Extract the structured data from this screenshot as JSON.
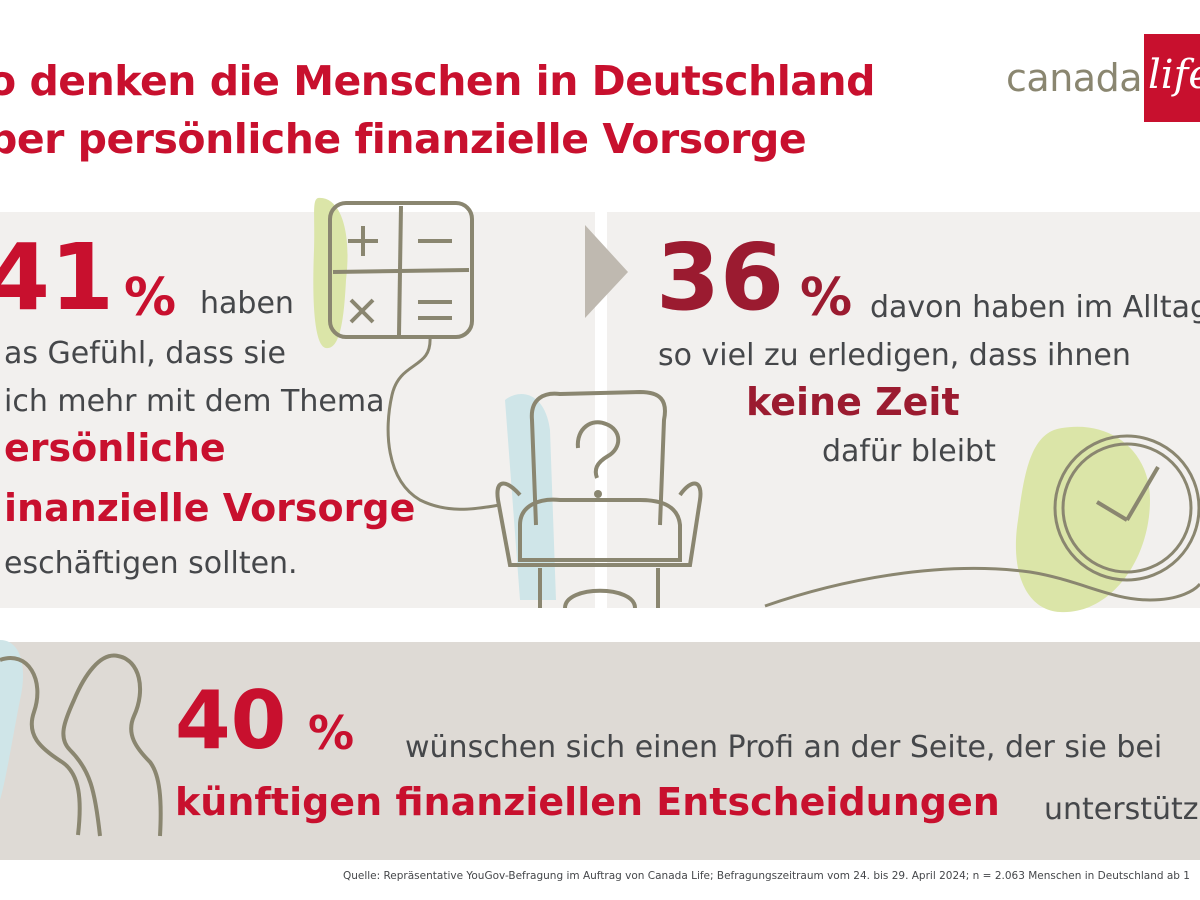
{
  "title": {
    "line1": "o denken die Menschen in Deutschland",
    "line2": "ber persönliche finanzielle Vorsorge"
  },
  "logo": {
    "text": "canada",
    "script": "life"
  },
  "stat1": {
    "number": "41",
    "percent": "%",
    "word": "haben",
    "line2": "as Gefühl, dass sie",
    "line3": "ich mehr mit dem Thema",
    "emph1": "ersönliche",
    "emph2": "inanzielle Vorsorge",
    "line6": "eschäftigen sollten."
  },
  "stat2": {
    "number": "36",
    "percent": "%",
    "line1": "davon haben im Alltag",
    "line2": "so viel zu erledigen, dass ihnen",
    "emph": "keine Zeit",
    "line4": "dafür bleibt"
  },
  "stat3": {
    "number": "40",
    "percent": "%",
    "line1": "wünschen sich einen Profi an der Seite, der sie bei",
    "emph": "künftigen finanziellen Entscheidungen",
    "tail": "unterstütz"
  },
  "source": "Quelle: Repräsentative YouGov-Befragung im Auftrag von Canada Life; Befragungszeitraum vom 24. bis 29. April 2024; n = 2.063 Menschen in Deutschland ab 1",
  "icons": [
    "calculator-icon",
    "armchair-question-icon",
    "clock-icon",
    "people-icon",
    "arrow-icon"
  ],
  "colors": {
    "brand_red": "#c8102e",
    "dark_red": "#9b1b30",
    "panel": "#f2f0ee",
    "band": "#dedad5",
    "line": "#8a8670",
    "green": "#dbe5a8",
    "blue": "#cfe5e8"
  }
}
